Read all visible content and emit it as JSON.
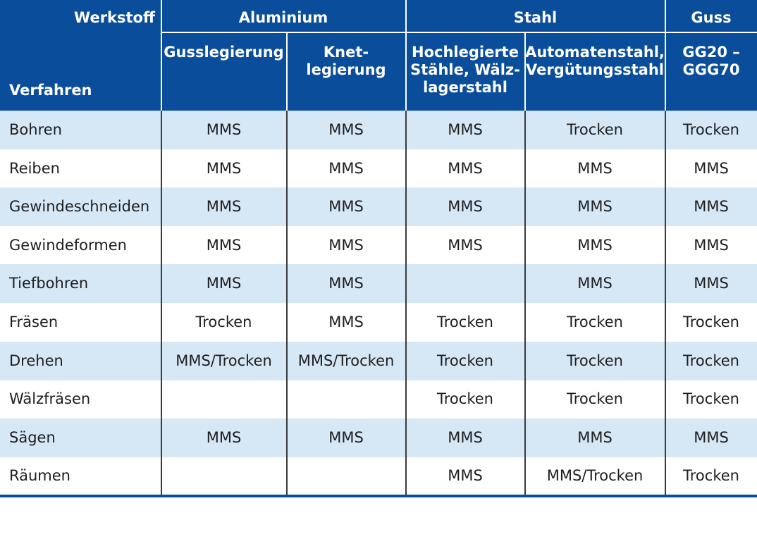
{
  "header": {
    "werkstoff": "Werkstoff",
    "verfahren": "Verfahren",
    "groups": [
      "Aluminium",
      "Stahl",
      "Guss"
    ],
    "subheaders": [
      "Gusslegierung",
      "Knet-\nlegierung",
      "Hochlegierte\nStähle, Wälz-\nlagerstahl",
      "Automatenstahl,\nVergütungsstahl",
      "GG20 –\nGGG70"
    ]
  },
  "rows": [
    {
      "label": "Bohren",
      "cells": [
        "MMS",
        "MMS",
        "MMS",
        "Trocken",
        "Trocken"
      ]
    },
    {
      "label": "Reiben",
      "cells": [
        "MMS",
        "MMS",
        "MMS",
        "MMS",
        "MMS"
      ]
    },
    {
      "label": "Gewindeschneiden",
      "cells": [
        "MMS",
        "MMS",
        "MMS",
        "MMS",
        "MMS"
      ]
    },
    {
      "label": "Gewindeformen",
      "cells": [
        "MMS",
        "MMS",
        "MMS",
        "MMS",
        "MMS"
      ]
    },
    {
      "label": "Tiefbohren",
      "cells": [
        "MMS",
        "MMS",
        "",
        "MMS",
        "MMS"
      ]
    },
    {
      "label": "Fräsen",
      "cells": [
        "Trocken",
        "MMS",
        "Trocken",
        "Trocken",
        "Trocken"
      ]
    },
    {
      "label": "Drehen",
      "cells": [
        "MMS/Trocken",
        "MMS/Trocken",
        "Trocken",
        "Trocken",
        "Trocken"
      ]
    },
    {
      "label": "Wälzfräsen",
      "cells": [
        "",
        "",
        "Trocken",
        "Trocken",
        "Trocken"
      ]
    },
    {
      "label": "Sägen",
      "cells": [
        "MMS",
        "MMS",
        "MMS",
        "MMS",
        "MMS"
      ]
    },
    {
      "label": "Räumen",
      "cells": [
        "",
        "",
        "MMS",
        "MMS/Trocken",
        "Trocken"
      ]
    }
  ],
  "colors": {
    "header_bg": "#0a4e9b",
    "row_shade": "#d6e7f6",
    "text": "#1e1e1e"
  }
}
